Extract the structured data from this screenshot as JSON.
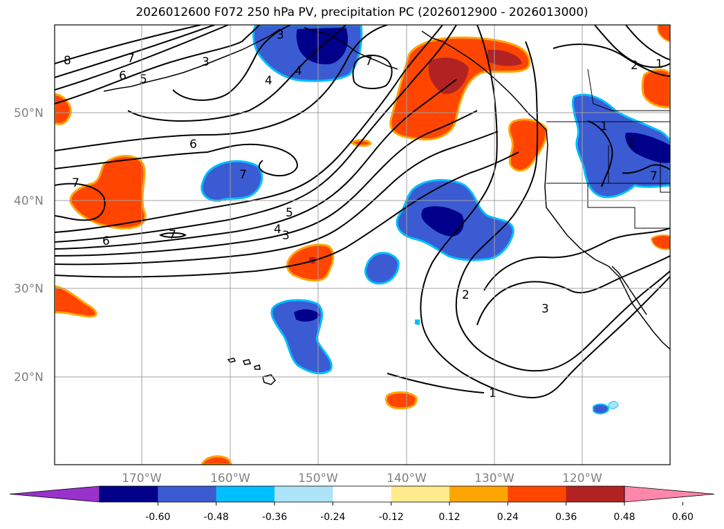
{
  "title": "2026012600 F072 250 hPa PV, precipitation PC (2026012900 - 2026013000)",
  "map": {
    "lon_range": [
      -180,
      -110
    ],
    "lat_range": [
      10,
      60
    ],
    "lat_labels": [
      "20°N",
      "30°N",
      "40°N",
      "50°N"
    ],
    "lat_values": [
      20,
      30,
      40,
      50
    ],
    "lon_labels": [
      "170°W",
      "160°W",
      "150°W",
      "140°W",
      "130°W",
      "120°W"
    ],
    "lon_values": [
      -170,
      -160,
      -150,
      -140,
      -130,
      -120
    ],
    "grid": true
  },
  "contour_labels": [
    "8",
    "7",
    "6",
    "5",
    "4",
    "3",
    "2",
    "1",
    "6",
    "7",
    "7",
    "6",
    "5",
    "4",
    "3",
    "7",
    "7",
    "2",
    "3",
    "1",
    "1",
    "2",
    "3",
    "4",
    "7"
  ],
  "colorbar": {
    "ticks": [
      "-0.60",
      "-0.48",
      "-0.36",
      "-0.24",
      "-0.12",
      "0.12",
      "0.24",
      "0.36",
      "0.48",
      "0.60"
    ],
    "colors": [
      "#9932cc",
      "#00008b",
      "#3b5bd3",
      "#00bfff",
      "#aee4fa",
      "#ffffff",
      "#ffeb8c",
      "#ffa500",
      "#ff4500",
      "#b22222",
      "#ff88aa"
    ]
  }
}
